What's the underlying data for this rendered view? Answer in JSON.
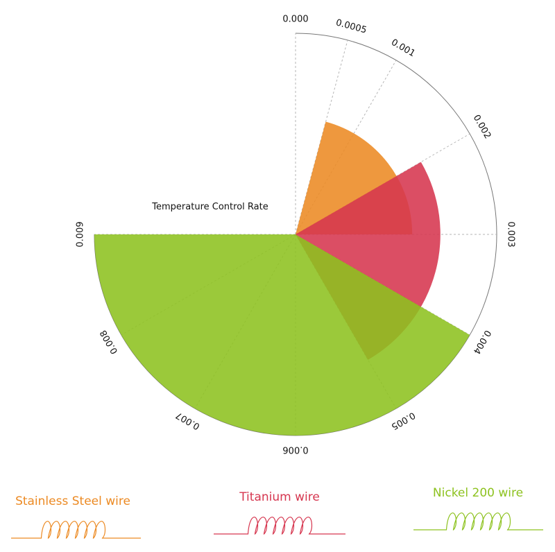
{
  "chart_data": {
    "type": "polar-area",
    "title": "Temperature Control Rate",
    "scale_max": 0.009,
    "angular_ticks": [
      "0.000",
      "0.0005",
      "0.001",
      "0.002",
      "0.003",
      "0.004",
      "0.005",
      "0.006",
      "0.007",
      "0.008",
      "0.009"
    ],
    "grid": true,
    "sectors": [
      {
        "series": "Stainless Steel wire",
        "color": "#ec8a23",
        "start": 0.0005,
        "end": 0.003,
        "radius": 0.58
      },
      {
        "series": "Titanium wire",
        "color": "#d6364f",
        "start": 0.002,
        "end": 0.005,
        "radius": 0.72
      },
      {
        "series": "Nickel 200 wire",
        "color": "#8dc21f",
        "start": 0.004,
        "end": 0.009,
        "radius": 1.0
      }
    ],
    "legend": [
      {
        "label": "Stainless Steel wire",
        "color": "#ec8a23"
      },
      {
        "label": "Titanium wire",
        "color": "#d6364f"
      },
      {
        "label": "Nickel  200 wire",
        "color": "#8dc21f"
      }
    ],
    "legend_position": "bottom"
  }
}
